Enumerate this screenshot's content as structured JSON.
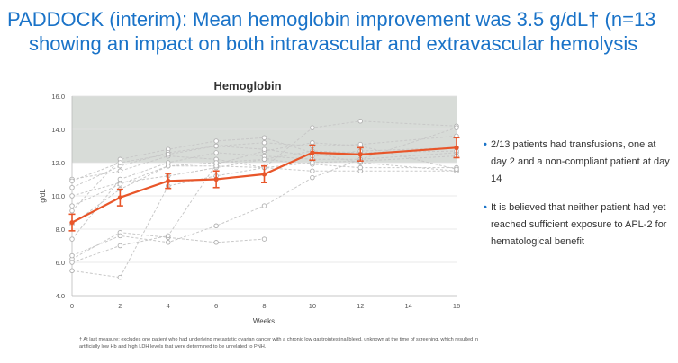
{
  "title": {
    "line1": "PADDOCK (interim): Mean hemoglobin improvement was 3.5 g/dL† (n=13",
    "line2": "showing an impact on both intravascular and extravascular hemolysis"
  },
  "bullets": [
    "2/13 patients had transfusions, one at day 2 and a non-compliant patient at day 14",
    "It is believed that neither patient had yet reached sufficient exposure to APL-2 for hematological benefit"
  ],
  "bullet_marker": "•",
  "footnote": "† At last measure; excludes one patient who had underlying metastatic ovarian cancer with a chronic low gastrointestinal bleed, unknown at the time of screening, which resulted in artificially low Hb and high LDH levels that were determined to be unrelated to PNH.",
  "colors": {
    "title": "#1a73c8",
    "mean_line": "#e8562a",
    "patient_lines": "#c8c8c8",
    "normal_band": "#d8dcd8",
    "bullet_dot": "#1a73c8"
  },
  "chart_data": {
    "type": "line",
    "title": "Hemoglobin",
    "xlabel": "Weeks",
    "ylabel": "g/dL",
    "xlim": [
      0,
      16
    ],
    "ylim": [
      4.0,
      16.0
    ],
    "xticks": [
      0,
      2,
      4,
      6,
      8,
      10,
      12,
      14,
      16
    ],
    "yticks": [
      4.0,
      6.0,
      8.0,
      10.0,
      12.0,
      14.0,
      16.0
    ],
    "shaded_band": [
      12.0,
      16.0
    ],
    "mean": {
      "name": "Mean",
      "x": [
        0,
        2,
        4,
        6,
        8,
        10,
        12,
        16
      ],
      "y": [
        8.4,
        9.9,
        10.9,
        11.0,
        11.3,
        12.6,
        12.5,
        12.9
      ],
      "err": [
        0.5,
        0.5,
        0.45,
        0.5,
        0.5,
        0.45,
        0.4,
        0.6
      ]
    },
    "series": [
      {
        "name": "patient-1",
        "x": [
          0,
          2,
          4,
          6,
          8,
          10,
          12,
          16
        ],
        "y": [
          9.1,
          12.2,
          12.8,
          13.3,
          13.5,
          12.6,
          12.0,
          11.5
        ]
      },
      {
        "name": "patient-2",
        "x": [
          0,
          2,
          4,
          6,
          8
        ],
        "y": [
          6.2,
          7.8,
          7.5,
          7.2,
          7.4
        ]
      },
      {
        "name": "patient-3",
        "x": [
          0,
          2,
          4,
          6,
          8,
          10,
          12,
          16
        ],
        "y": [
          5.5,
          5.1,
          10.6,
          11.2,
          11.7,
          14.1,
          14.5,
          14.2
        ]
      },
      {
        "name": "patient-4",
        "x": [
          0,
          2,
          4,
          6,
          8,
          10,
          12,
          16
        ],
        "y": [
          11.0,
          11.5,
          12.4,
          12.2,
          11.7,
          11.5,
          11.5,
          11.5
        ]
      },
      {
        "name": "patient-5",
        "x": [
          0,
          2,
          4,
          6,
          8,
          10,
          12,
          16
        ],
        "y": [
          10.0,
          10.8,
          11.2,
          11.7,
          12.2,
          11.9,
          11.7,
          11.7
        ]
      },
      {
        "name": "patient-6",
        "x": [
          0,
          2,
          4,
          6,
          8,
          10,
          12,
          16
        ],
        "y": [
          6.4,
          7.6,
          7.2,
          8.2,
          9.4,
          11.1,
          12.2,
          14.1
        ]
      },
      {
        "name": "patient-7",
        "x": [
          0,
          2,
          4,
          6,
          8,
          10,
          12,
          16
        ],
        "y": [
          6.0,
          7.0,
          7.6,
          11.9,
          12.7,
          13.2,
          13.0,
          11.6
        ]
      },
      {
        "name": "patient-8",
        "x": [
          0,
          2,
          4,
          6,
          8,
          10,
          12,
          16
        ],
        "y": [
          7.4,
          11.0,
          12.0,
          12.6,
          12.4,
          12.2,
          12.2,
          12.6
        ]
      },
      {
        "name": "patient-9",
        "x": [
          0,
          2,
          4,
          6,
          8,
          10,
          12,
          16
        ],
        "y": [
          9.4,
          10.7,
          11.8,
          12.0,
          12.2,
          12.7,
          12.6,
          12.7
        ]
      },
      {
        "name": "patient-10",
        "x": [
          0,
          2,
          4,
          6,
          8,
          10,
          12,
          16
        ],
        "y": [
          10.5,
          11.8,
          12.6,
          13.0,
          12.8,
          12.4,
          12.7,
          12.9
        ]
      },
      {
        "name": "patient-11",
        "x": [
          0,
          2,
          4,
          6,
          8,
          10,
          12,
          16
        ],
        "y": [
          10.9,
          12.0,
          12.5,
          13.0,
          13.2,
          13.0,
          13.1,
          13.6
        ]
      },
      {
        "name": "patient-12",
        "x": [
          0,
          2,
          4,
          6,
          8,
          10,
          12,
          16
        ],
        "y": [
          8.3,
          10.4,
          11.8,
          11.8,
          11.7,
          12.0,
          12.1,
          12.4
        ]
      }
    ]
  }
}
